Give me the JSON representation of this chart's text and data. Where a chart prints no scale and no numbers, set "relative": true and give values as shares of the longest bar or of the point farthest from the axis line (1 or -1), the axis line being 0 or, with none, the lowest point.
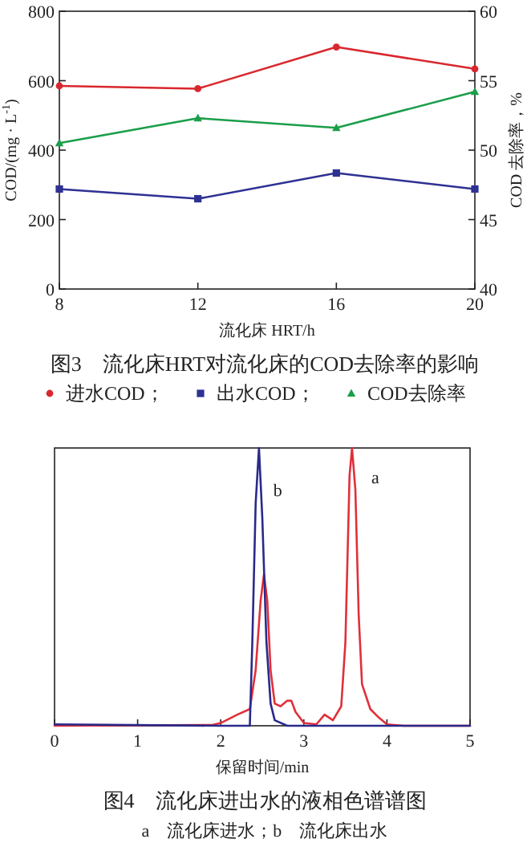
{
  "chart_data": [
    {
      "type": "line",
      "title": "图3　流化床HRT对流化床的COD去除率的影响",
      "xlabel": "流化床 HRT/h",
      "ylabel": "COD/(mg · L$^{-1}$)",
      "y2label": "COD 去除率，%",
      "x": [
        8,
        12,
        16,
        20
      ],
      "xlim": [
        8,
        20
      ],
      "xticks": [
        8,
        12,
        16,
        20
      ],
      "ylim": [
        0,
        800
      ],
      "yticks": [
        0,
        200,
        400,
        600,
        800
      ],
      "y2lim": [
        40,
        60
      ],
      "y2ticks": [
        40,
        45,
        50,
        55,
        60
      ],
      "legend": "bottom",
      "series": [
        {
          "name": "进水COD；",
          "color": "#d8282e",
          "marker": "circle",
          "values": [
            585,
            577,
            697,
            634
          ]
        },
        {
          "name": "出水COD；",
          "color": "#2e3192",
          "marker": "square",
          "values": [
            288,
            260,
            334,
            288
          ]
        },
        {
          "name": "COD去除率",
          "color": "#1a9e4a",
          "marker": "triangle",
          "axis": "y2",
          "values": [
            50.5,
            52.3,
            51.6,
            54.2
          ]
        }
      ]
    },
    {
      "type": "line",
      "title": "图4　流化床进出水的液相色谱谱图",
      "subtitle": "a　流化床进水；b　流化床出水",
      "xlabel": "保留时间/min",
      "xlim": [
        0,
        5
      ],
      "xticks": [
        0,
        1,
        2,
        3,
        4,
        5
      ],
      "relative": true,
      "tick_labels": "x",
      "series": [
        {
          "name": "a",
          "color": "#e0303a",
          "x": [
            0,
            1.9,
            2.0,
            2.2,
            2.35,
            2.42,
            2.48,
            2.52,
            2.56,
            2.6,
            2.65,
            2.72,
            2.8,
            2.85,
            2.9,
            3.0,
            3.15,
            3.25,
            3.3,
            3.35,
            3.45,
            3.5,
            3.55,
            3.58,
            3.62,
            3.66,
            3.7,
            3.8,
            3.9,
            4.0,
            4.2,
            5
          ],
          "values": [
            0,
            0.003,
            0.01,
            0.04,
            0.06,
            0.2,
            0.45,
            0.545,
            0.45,
            0.2,
            0.08,
            0.07,
            0.09,
            0.09,
            0.05,
            0.01,
            0.005,
            0.04,
            0.03,
            0.02,
            0.07,
            0.3,
            0.9,
            1.0,
            0.85,
            0.4,
            0.15,
            0.06,
            0.03,
            0.005,
            0,
            0
          ]
        },
        {
          "name": "b",
          "color": "#2a2a8a",
          "x": [
            0,
            2.0,
            2.35,
            2.38,
            2.42,
            2.46,
            2.5,
            2.55,
            2.6,
            2.65,
            2.8,
            5
          ],
          "values": [
            0.005,
            0,
            0,
            0.3,
            0.8,
            1.0,
            0.75,
            0.3,
            0.08,
            0.02,
            0,
            0
          ]
        }
      ]
    }
  ]
}
